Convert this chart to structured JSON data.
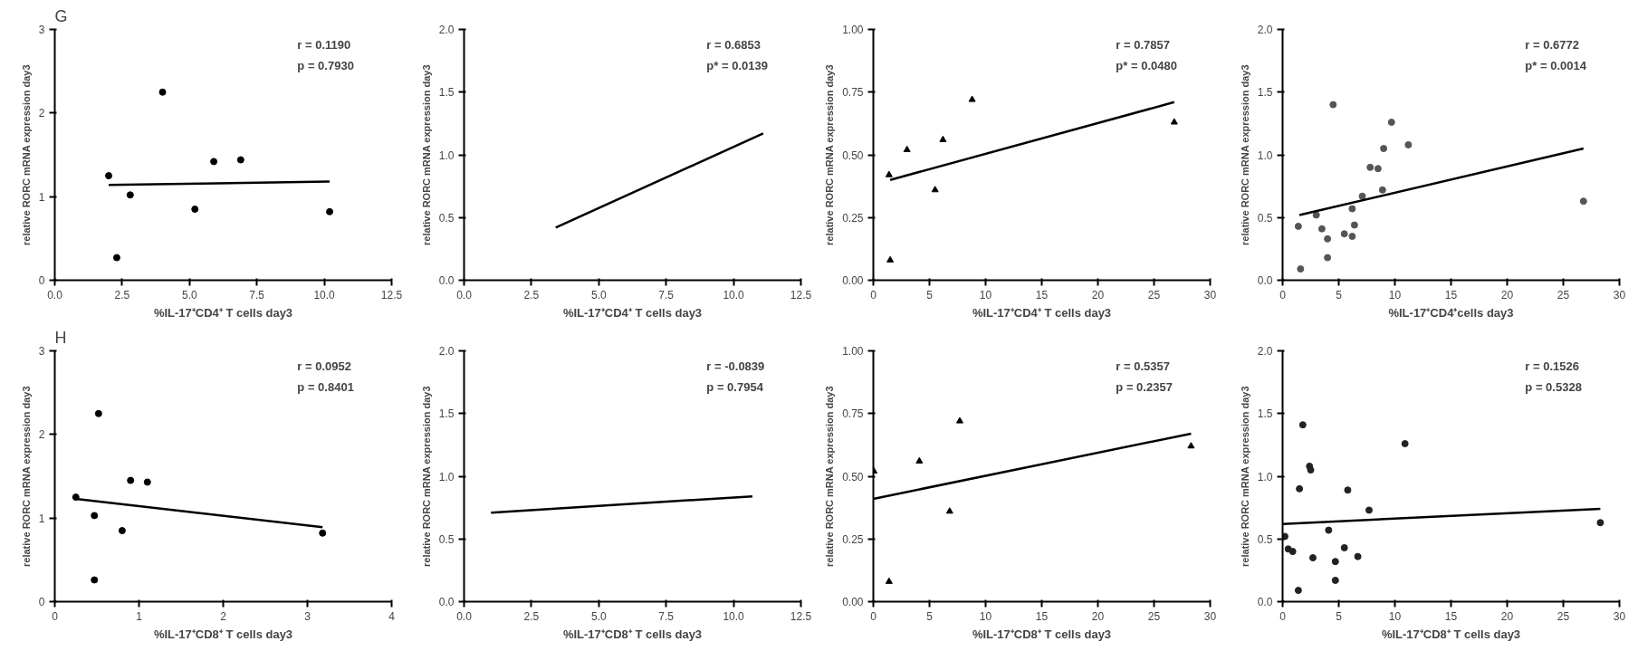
{
  "chart_data": [
    {
      "type": "scatter",
      "title": "G",
      "xlabel": "%IL-17⁺CD4⁺ T cells day3",
      "ylabel": "relative RORC mRNA expression day3",
      "xlim": [
        0,
        12.5
      ],
      "xticks": [
        {
          "value": 0,
          "label": "0.0"
        },
        2.5,
        {
          "value": 5,
          "label": "5.0"
        },
        7.5,
        {
          "value": 10,
          "label": "10.0"
        },
        12.5
      ],
      "ylim": [
        0,
        3
      ],
      "yticks": [
        0,
        1,
        2,
        3
      ],
      "grid": false,
      "annotations": [
        "r = 0.1190",
        "p = 0.7930"
      ],
      "series": [
        {
          "marker": "circle",
          "color": "#000000",
          "x": [
            2.0,
            2.3,
            2.8,
            4.0,
            5.2,
            5.9,
            6.9,
            10.2
          ],
          "values": [
            1.25,
            0.27,
            1.02,
            2.25,
            0.85,
            1.42,
            1.44,
            0.82
          ]
        },
        {
          "type": "line",
          "color": "#000000",
          "x": [
            2.0,
            10.2
          ],
          "values": [
            1.14,
            1.18
          ]
        }
      ]
    },
    {
      "type": "line",
      "xlabel": "%IL-17⁺CD4⁺ T cells day3",
      "ylabel": "relative RORC mRNA expression day3",
      "xlim": [
        0,
        12.5
      ],
      "xticks": [
        {
          "value": 0,
          "label": "0.0"
        },
        2.5,
        {
          "value": 5,
          "label": "5.0"
        },
        7.5,
        {
          "value": 10,
          "label": "10.0"
        },
        12.5
      ],
      "ylim": [
        0,
        2
      ],
      "yticks": [
        {
          "value": 0,
          "label": "0.0"
        },
        0.5,
        {
          "value": 1,
          "label": "1.0"
        },
        1.5,
        {
          "value": 2,
          "label": "2.0"
        }
      ],
      "grid": false,
      "annotations": [
        "r  = 0.6853",
        "p* = 0.0139"
      ],
      "series": [
        {
          "color": "#000000",
          "x": [
            3.4,
            11.1
          ],
          "values": [
            0.42,
            1.17
          ]
        }
      ]
    },
    {
      "type": "scatter",
      "xlabel": "%IL-17⁺CD4⁺ T cells day3",
      "ylabel": "relative RORC mRNA expression day3",
      "xlim": [
        0,
        30
      ],
      "xticks": [
        0,
        5,
        10,
        15,
        20,
        25,
        30
      ],
      "ylim": [
        0,
        1
      ],
      "yticks": [
        {
          "value": 0,
          "label": "0.00"
        },
        0.25,
        {
          "value": 0.5,
          "label": "0.50"
        },
        0.75,
        {
          "value": 1,
          "label": "1.00"
        }
      ],
      "grid": false,
      "annotations": [
        "r  = 0.7857",
        "p* = 0.0480"
      ],
      "series": [
        {
          "marker": "triangle",
          "color": "#000000",
          "x": [
            1.4,
            1.5,
            3.0,
            5.5,
            6.2,
            8.8,
            26.8
          ],
          "values": [
            0.42,
            0.08,
            0.52,
            0.36,
            0.56,
            0.72,
            0.63
          ]
        },
        {
          "type": "line",
          "color": "#000000",
          "x": [
            1.5,
            26.8
          ],
          "values": [
            0.4,
            0.71
          ]
        }
      ]
    },
    {
      "type": "scatter",
      "xlabel": "%IL-17⁺CD4⁺cells day3",
      "ylabel": "relative RORC mRNA expression day3",
      "xlim": [
        0,
        30
      ],
      "xticks": [
        0,
        5,
        10,
        15,
        20,
        25,
        30
      ],
      "ylim": [
        0,
        2
      ],
      "yticks": [
        {
          "value": 0,
          "label": "0.0"
        },
        0.5,
        {
          "value": 1,
          "label": "1.0"
        },
        1.5,
        {
          "value": 2,
          "label": "2.0"
        }
      ],
      "grid": false,
      "annotations": [
        "r  = 0.6772",
        "p* = 0.0014"
      ],
      "series": [
        {
          "marker": "circle",
          "color": "#555555",
          "x": [
            1.4,
            1.6,
            3.0,
            3.5,
            4.0,
            4.0,
            4.5,
            5.5,
            6.2,
            6.2,
            6.4,
            7.1,
            7.8,
            8.5,
            8.9,
            9.0,
            9.7,
            11.2,
            26.8
          ],
          "values": [
            0.43,
            0.09,
            0.52,
            0.41,
            0.33,
            0.18,
            1.4,
            0.37,
            0.35,
            0.57,
            0.44,
            0.67,
            0.9,
            0.89,
            0.72,
            1.05,
            1.26,
            1.08,
            0.63
          ]
        },
        {
          "type": "line",
          "color": "#000000",
          "x": [
            1.5,
            26.8
          ],
          "values": [
            0.52,
            1.05
          ]
        }
      ]
    },
    {
      "type": "scatter",
      "title": "H",
      "xlabel": "%IL-17⁺CD8⁺ T cells day3",
      "ylabel": "relative RORC mRNA expression day3",
      "xlim": [
        0,
        4
      ],
      "xticks": [
        0,
        1,
        2,
        3,
        4
      ],
      "ylim": [
        0,
        3
      ],
      "yticks": [
        0,
        1,
        2,
        3
      ],
      "grid": false,
      "annotations": [
        "r = 0.0952",
        "p = 0.8401"
      ],
      "series": [
        {
          "marker": "circle",
          "color": "#000000",
          "x": [
            0.25,
            0.47,
            0.47,
            0.52,
            0.8,
            0.9,
            1.1,
            3.18
          ],
          "values": [
            1.25,
            1.03,
            0.26,
            2.25,
            0.85,
            1.45,
            1.43,
            0.82
          ]
        },
        {
          "type": "line",
          "color": "#000000",
          "x": [
            0.25,
            3.18
          ],
          "values": [
            1.23,
            0.89
          ]
        }
      ]
    },
    {
      "type": "line",
      "xlabel": "%IL-17⁺CD8⁺ T cells day3",
      "ylabel": "relative RORC mRNA expression day3",
      "xlim": [
        0,
        12.5
      ],
      "xticks": [
        {
          "value": 0,
          "label": "0.0"
        },
        2.5,
        {
          "value": 5,
          "label": "5.0"
        },
        7.5,
        {
          "value": 10,
          "label": "10.0"
        },
        12.5
      ],
      "ylim": [
        0,
        2
      ],
      "yticks": [
        {
          "value": 0,
          "label": "0.0"
        },
        0.5,
        {
          "value": 1,
          "label": "1.0"
        },
        1.5,
        {
          "value": 2,
          "label": "2.0"
        }
      ],
      "grid": false,
      "annotations": [
        "r = -0.0839",
        "p = 0.7954"
      ],
      "series": [
        {
          "color": "#000000",
          "x": [
            1.0,
            10.7
          ],
          "values": [
            0.71,
            0.84
          ]
        }
      ]
    },
    {
      "type": "scatter",
      "xlabel": "%IL-17⁺CD8⁺ T cells day3",
      "ylabel": "relative RORC mRNA expression day3",
      "xlim": [
        0,
        30
      ],
      "xticks": [
        0,
        5,
        10,
        15,
        20,
        25,
        30
      ],
      "ylim": [
        0,
        1
      ],
      "yticks": [
        {
          "value": 0,
          "label": "0.00"
        },
        0.25,
        {
          "value": 0.5,
          "label": "0.50"
        },
        0.75,
        {
          "value": 1,
          "label": "1.00"
        }
      ],
      "grid": false,
      "annotations": [
        "r = 0.5357",
        "p = 0.2357"
      ],
      "series": [
        {
          "marker": "triangle",
          "color": "#000000",
          "x": [
            0.05,
            1.4,
            4.1,
            6.8,
            7.7,
            28.3
          ],
          "values": [
            0.52,
            0.08,
            0.56,
            0.36,
            0.72,
            0.62
          ]
        },
        {
          "type": "line",
          "color": "#000000",
          "x": [
            0,
            28.3
          ],
          "values": [
            0.41,
            0.67
          ]
        }
      ]
    },
    {
      "type": "scatter",
      "xlabel": "%IL-17⁺CD8⁺ T cells day3",
      "ylabel": "relative RORC mRNA expression day3",
      "xlim": [
        0,
        30
      ],
      "xticks": [
        0,
        5,
        10,
        15,
        20,
        25,
        30
      ],
      "ylim": [
        0,
        2
      ],
      "yticks": [
        {
          "value": 0,
          "label": "0.0"
        },
        0.5,
        {
          "value": 1,
          "label": "1.0"
        },
        1.5,
        {
          "value": 2,
          "label": "2.0"
        }
      ],
      "grid": false,
      "annotations": [
        "r = 0.1526",
        "p = 0.5328"
      ],
      "series": [
        {
          "marker": "circle",
          "color": "#222222",
          "x": [
            0.2,
            0.5,
            0.9,
            1.4,
            1.5,
            1.8,
            2.4,
            2.5,
            2.7,
            4.1,
            4.7,
            4.7,
            5.5,
            5.8,
            6.7,
            7.7,
            10.9,
            28.3
          ],
          "values": [
            0.52,
            0.42,
            0.4,
            0.09,
            0.9,
            1.41,
            1.08,
            1.05,
            0.35,
            0.57,
            0.32,
            0.17,
            0.43,
            0.89,
            0.36,
            0.73,
            1.26,
            0.63
          ]
        },
        {
          "type": "line",
          "color": "#000000",
          "x": [
            0,
            28.3
          ],
          "values": [
            0.62,
            0.74
          ]
        }
      ]
    }
  ]
}
